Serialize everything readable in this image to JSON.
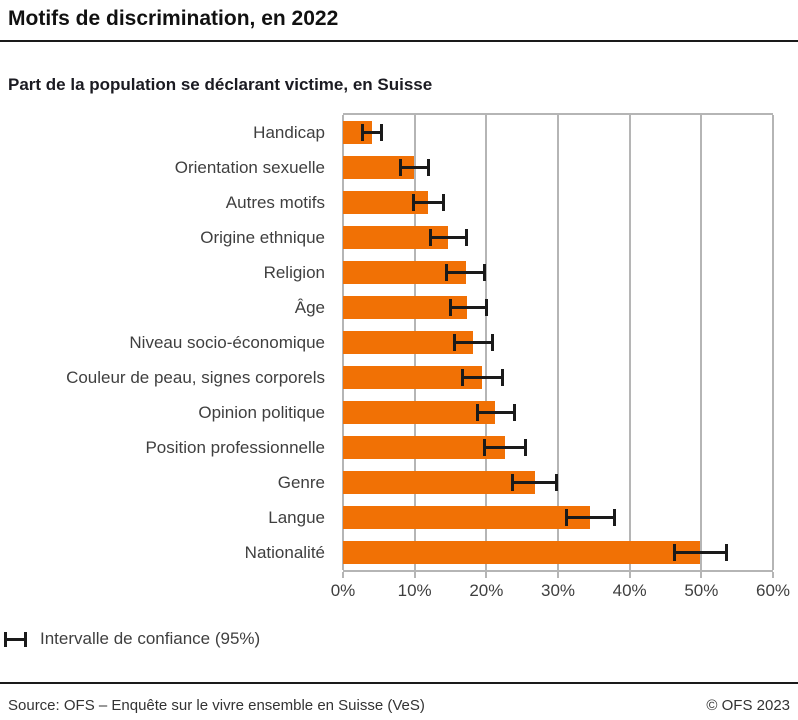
{
  "chart_data": {
    "type": "bar",
    "orientation": "horizontal",
    "title": "Motifs de discrimination, en 2022",
    "subtitle": "Part de la population se déclarant victime, en Suisse",
    "categories": [
      "Handicap",
      "Orientation sexuelle",
      "Autres motifs",
      "Origine ethnique",
      "Religion",
      "Âge",
      "Niveau socio-économique",
      "Couleur de peau, signes corporels",
      "Opinion politique",
      "Position professionnelle",
      "Genre",
      "Langue",
      "Nationalité"
    ],
    "values": [
      4.0,
      9.9,
      11.8,
      14.6,
      17.1,
      17.3,
      18.1,
      19.4,
      21.2,
      22.6,
      26.8,
      34.4,
      49.8
    ],
    "ci_low": [
      2.5,
      7.8,
      9.6,
      12.0,
      14.3,
      14.8,
      15.3,
      16.4,
      18.5,
      19.5,
      23.5,
      31.0,
      46.1
    ],
    "ci_high": [
      5.6,
      12.2,
      14.3,
      17.4,
      20.0,
      20.3,
      21.1,
      22.5,
      24.2,
      25.7,
      30.0,
      38.1,
      53.7
    ],
    "unit": "%",
    "xlim": [
      0,
      60
    ],
    "x_tick_labels": [
      "0%",
      "10%",
      "20%",
      "30%",
      "40%",
      "50%",
      "60%"
    ],
    "grid": true,
    "legend_label": "Intervalle de confiance (95%)",
    "bar_color": "#f17105",
    "error_bar_color": "#1a1a1a",
    "grid_color": "#b5b5b5"
  },
  "footer": {
    "source": "Source: OFS – Enquête sur le vivre ensemble en Suisse (VeS)",
    "copyright": "© OFS 2023"
  }
}
